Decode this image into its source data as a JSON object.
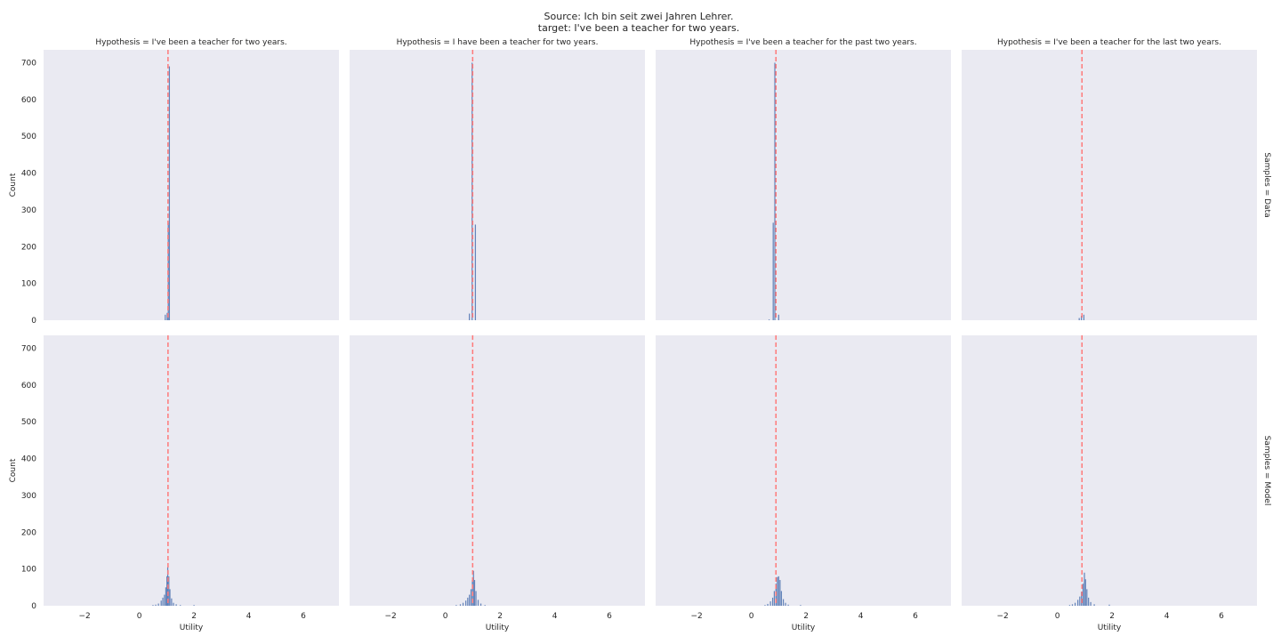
{
  "figure": {
    "suptitle_line1": "Source: Ich bin seit zwei Jahren Lehrer.",
    "suptitle_line2": "target: I've been a teacher for two years."
  },
  "colors": {
    "bar": "#4c72b0",
    "reference_line": "#ff7a7a",
    "panel_background": "#eaeaf2"
  },
  "chart_data": {
    "type": "histogram",
    "xlabel": "Utility",
    "ylabel": "Count",
    "xlim": [
      -3.5,
      7.3
    ],
    "ylim": [
      0,
      735
    ],
    "xticks": [
      -2,
      0,
      2,
      4,
      6
    ],
    "xtick_labels": [
      "−2",
      "0",
      "2",
      "4",
      "6"
    ],
    "yticks": [
      0,
      100,
      200,
      300,
      400,
      500,
      600,
      700
    ],
    "ytick_labels": [
      "0",
      "100",
      "200",
      "300",
      "400",
      "500",
      "600",
      "700"
    ],
    "grid": false,
    "columns": [
      {
        "title": "Hypothesis = I've been a teacher for two years.",
        "reference_x": 1.05
      },
      {
        "title": "Hypothesis = I have been a teacher for two years.",
        "reference_x": 1.0
      },
      {
        "title": "Hypothesis = I've been a teacher for the past two years.",
        "reference_x": 0.9
      },
      {
        "title": "Hypothesis = I've been a teacher for the last two years.",
        "reference_x": 0.9
      }
    ],
    "rows": [
      {
        "label": "Samples = Data"
      },
      {
        "label": "Samples = Model"
      }
    ],
    "panels": [
      {
        "row": 0,
        "col": 0,
        "bars": [
          {
            "x": 0.95,
            "count": 15
          },
          {
            "x": 1.02,
            "count": 20
          },
          {
            "x": 1.06,
            "count": 265
          },
          {
            "x": 1.1,
            "count": 690
          }
        ]
      },
      {
        "row": 0,
        "col": 1,
        "bars": [
          {
            "x": 0.88,
            "count": 18
          },
          {
            "x": 0.98,
            "count": 700
          },
          {
            "x": 1.1,
            "count": 260
          }
        ]
      },
      {
        "row": 0,
        "col": 2,
        "bars": [
          {
            "x": 0.65,
            "count": 2
          },
          {
            "x": 0.8,
            "count": 265
          },
          {
            "x": 0.86,
            "count": 700
          },
          {
            "x": 1.0,
            "count": 15
          }
        ]
      },
      {
        "row": 0,
        "col": 3,
        "bars": [
          {
            "x": 0.8,
            "count": 6
          },
          {
            "x": 0.88,
            "count": 12
          },
          {
            "x": 0.97,
            "count": 15
          }
        ]
      },
      {
        "row": 1,
        "col": 0,
        "bars": [
          {
            "x": 0.5,
            "count": 2
          },
          {
            "x": 0.6,
            "count": 3
          },
          {
            "x": 0.7,
            "count": 6
          },
          {
            "x": 0.8,
            "count": 14
          },
          {
            "x": 0.86,
            "count": 22
          },
          {
            "x": 0.92,
            "count": 30
          },
          {
            "x": 0.97,
            "count": 50
          },
          {
            "x": 1.01,
            "count": 80
          },
          {
            "x": 1.04,
            "count": 105
          },
          {
            "x": 1.08,
            "count": 80
          },
          {
            "x": 1.12,
            "count": 45
          },
          {
            "x": 1.18,
            "count": 20
          },
          {
            "x": 1.25,
            "count": 8
          },
          {
            "x": 1.35,
            "count": 4
          },
          {
            "x": 1.5,
            "count": 2
          },
          {
            "x": 2.0,
            "count": 2
          }
        ]
      },
      {
        "row": 1,
        "col": 1,
        "bars": [
          {
            "x": 0.4,
            "count": 2
          },
          {
            "x": 0.55,
            "count": 4
          },
          {
            "x": 0.65,
            "count": 8
          },
          {
            "x": 0.75,
            "count": 14
          },
          {
            "x": 0.82,
            "count": 22
          },
          {
            "x": 0.88,
            "count": 30
          },
          {
            "x": 0.94,
            "count": 45
          },
          {
            "x": 0.99,
            "count": 70
          },
          {
            "x": 1.03,
            "count": 95
          },
          {
            "x": 1.07,
            "count": 70
          },
          {
            "x": 1.12,
            "count": 40
          },
          {
            "x": 1.2,
            "count": 16
          },
          {
            "x": 1.3,
            "count": 6
          },
          {
            "x": 1.45,
            "count": 2
          }
        ]
      },
      {
        "row": 1,
        "col": 2,
        "bars": [
          {
            "x": 0.5,
            "count": 2
          },
          {
            "x": 0.6,
            "count": 5
          },
          {
            "x": 0.7,
            "count": 12
          },
          {
            "x": 0.78,
            "count": 22
          },
          {
            "x": 0.84,
            "count": 40
          },
          {
            "x": 0.9,
            "count": 60
          },
          {
            "x": 0.95,
            "count": 78
          },
          {
            "x": 1.0,
            "count": 80
          },
          {
            "x": 1.05,
            "count": 70
          },
          {
            "x": 1.1,
            "count": 40
          },
          {
            "x": 1.17,
            "count": 18
          },
          {
            "x": 1.25,
            "count": 8
          },
          {
            "x": 1.35,
            "count": 3
          },
          {
            "x": 1.8,
            "count": 2
          }
        ]
      },
      {
        "row": 1,
        "col": 3,
        "bars": [
          {
            "x": 0.45,
            "count": 2
          },
          {
            "x": 0.55,
            "count": 4
          },
          {
            "x": 0.65,
            "count": 8
          },
          {
            "x": 0.75,
            "count": 16
          },
          {
            "x": 0.82,
            "count": 25
          },
          {
            "x": 0.88,
            "count": 38
          },
          {
            "x": 0.94,
            "count": 60
          },
          {
            "x": 0.99,
            "count": 90
          },
          {
            "x": 1.03,
            "count": 72
          },
          {
            "x": 1.08,
            "count": 45
          },
          {
            "x": 1.14,
            "count": 22
          },
          {
            "x": 1.22,
            "count": 10
          },
          {
            "x": 1.35,
            "count": 4
          },
          {
            "x": 1.9,
            "count": 3
          }
        ]
      }
    ]
  }
}
